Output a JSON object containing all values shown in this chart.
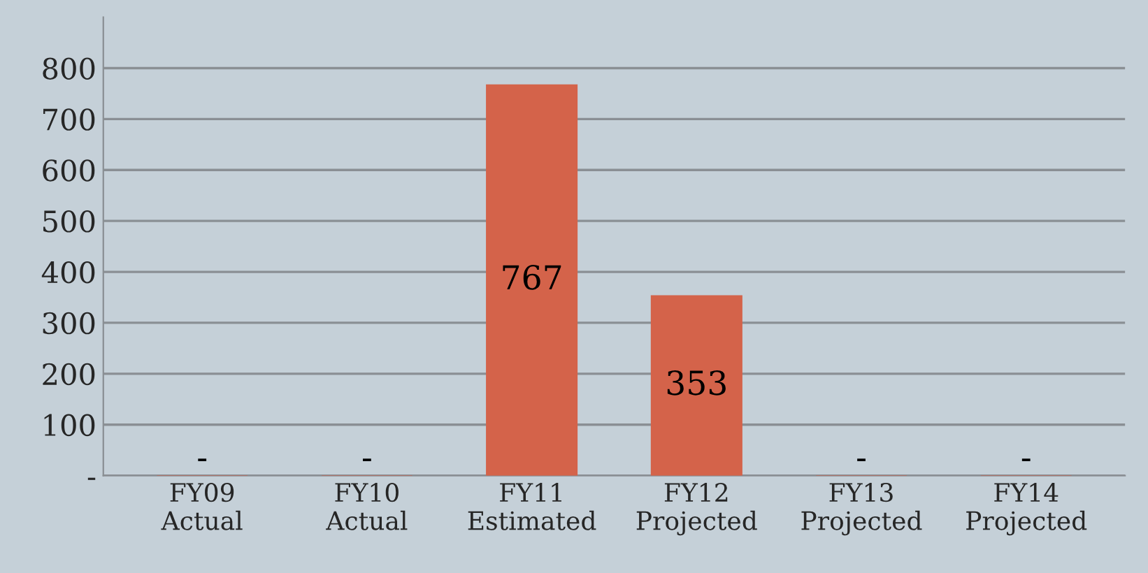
{
  "chart_data": {
    "type": "bar",
    "categories": [
      "FY09\nActual",
      "FY10\nActual",
      "FY11\nEstimated",
      "FY12\nProjected",
      "FY13\nProjected",
      "FY14\nProjected"
    ],
    "values": [
      0,
      0,
      767,
      353,
      0,
      0
    ],
    "value_labels": [
      "-",
      "-",
      "767",
      "353",
      "-",
      "-"
    ],
    "color": "#d4634a",
    "ylim": [
      0,
      900
    ],
    "yticks": [
      {
        "value": 0,
        "label": "-"
      },
      100,
      200,
      300,
      400,
      500,
      600,
      700,
      800
    ],
    "grid": "y"
  }
}
